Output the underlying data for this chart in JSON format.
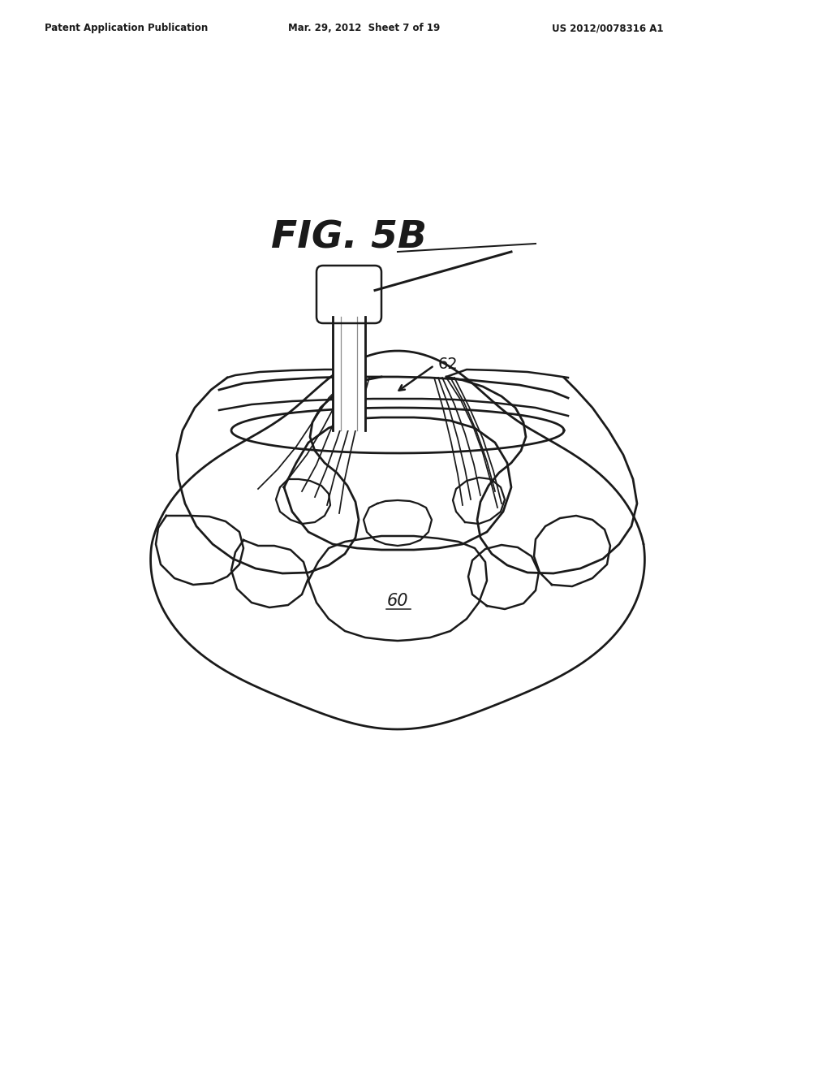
{
  "background_color": "#ffffff",
  "header_left": "Patent Application Publication",
  "header_middle": "Mar. 29, 2012  Sheet 7 of 19",
  "header_right": "US 2012/0078316 A1",
  "figure_label": "FIG. 5B",
  "label_62": "62",
  "label_60": "60",
  "line_color": "#1a1a1a",
  "line_width": 1.8
}
